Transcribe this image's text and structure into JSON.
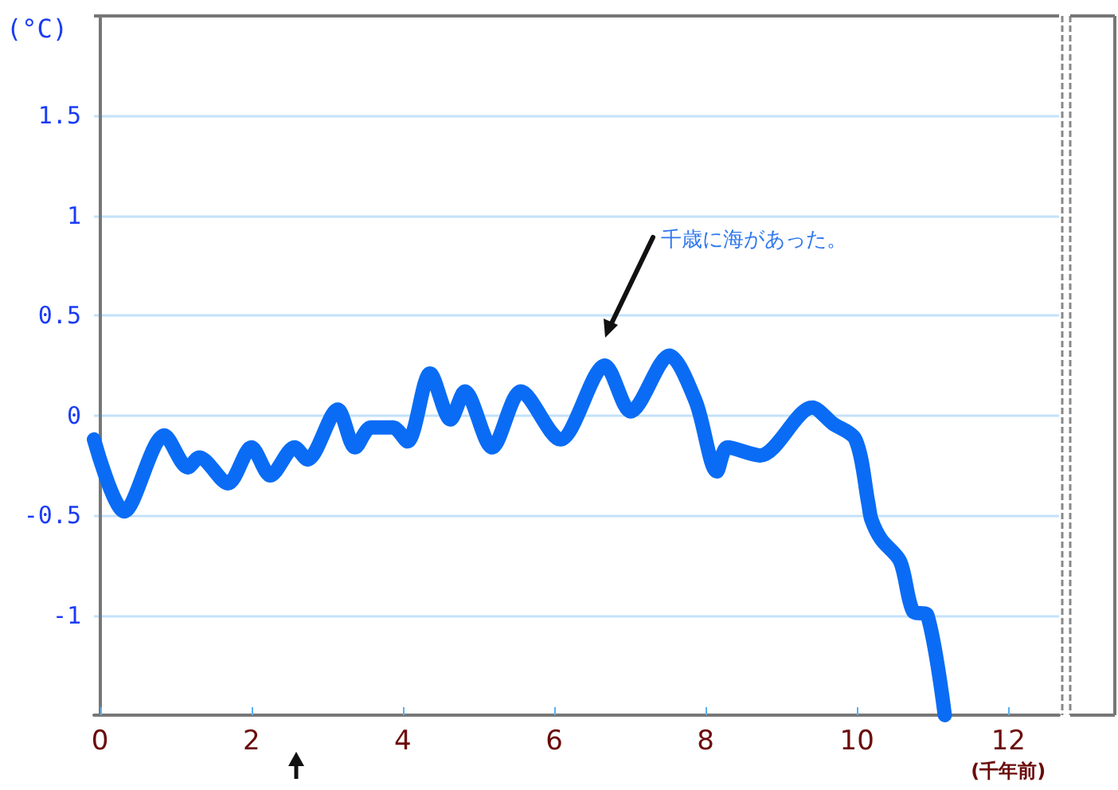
{
  "chart_data": {
    "type": "line",
    "xlabel": "(千年前)",
    "ylabel": "(°C)",
    "annotations": [
      "千歳に海があった。"
    ],
    "xlim": [
      -0.08,
      12.67
    ],
    "xticks": [
      0,
      2,
      4,
      6,
      8,
      10,
      12
    ],
    "ylim": [
      -1.5,
      2.0
    ],
    "yticks": [
      -1,
      -0.5,
      0,
      0.5,
      1,
      1.5
    ],
    "grid": "y",
    "line_style": "solid",
    "series": [
      {
        "color": "#0a6cf5",
        "x": [
          -0.08,
          0.32,
          0.85,
          1.16,
          1.31,
          1.69,
          2.0,
          2.25,
          2.57,
          2.74,
          3.14,
          3.37,
          3.58,
          3.87,
          4.06,
          4.36,
          4.63,
          4.82,
          5.18,
          5.56,
          6.08,
          6.67,
          7.01,
          7.52,
          7.87,
          8.15,
          8.29,
          8.72,
          9.41,
          9.68,
          9.98,
          10.15,
          10.19,
          10.32,
          10.57,
          10.74,
          10.93,
          11.16
        ],
        "values": [
          -0.12,
          -0.48,
          -0.1,
          -0.26,
          -0.21,
          -0.34,
          -0.16,
          -0.3,
          -0.16,
          -0.22,
          0.03,
          -0.16,
          -0.06,
          -0.06,
          -0.13,
          0.21,
          -0.02,
          0.12,
          -0.16,
          0.12,
          -0.12,
          0.25,
          0.02,
          0.3,
          0.07,
          -0.28,
          -0.16,
          -0.2,
          0.04,
          -0.04,
          -0.12,
          -0.44,
          -0.52,
          -0.62,
          -0.73,
          -0.98,
          -1.0,
          -1.5
        ]
      }
    ]
  }
}
